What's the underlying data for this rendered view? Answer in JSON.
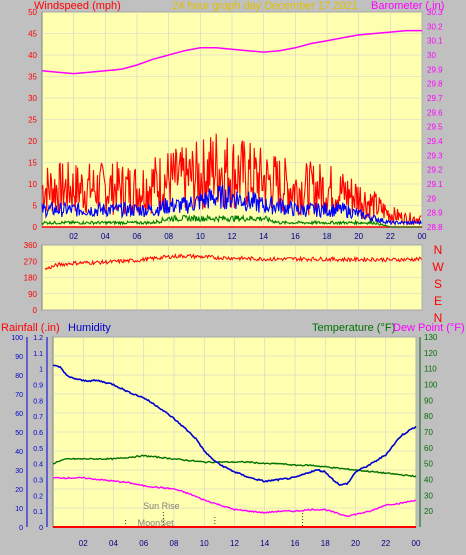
{
  "header": {
    "left_label": "Windspeed (mph)",
    "center_label": "24 hour graph day   December 17 2021",
    "right_label": "Barometer (.in)"
  },
  "colors": {
    "background": "#c0c0c0",
    "plot_bg": "#ffffb0",
    "grid": "#d0d0d0",
    "wind_gust": "#ff0000",
    "wind_avg": "#0000ff",
    "wind_low": "#008000",
    "barometer": "#ff00ff",
    "direction": "#ff0000",
    "humidity": "#0000cd",
    "temperature": "#007000",
    "dewpoint": "#ff00ff",
    "rain": "#ff0000",
    "left_axis_red": "#ff0000",
    "right_axis_magenta": "#ff00ff",
    "blue_axis": "#0000cd",
    "green_axis": "#007000"
  },
  "x_tick_labels": [
    "02",
    "04",
    "06",
    "08",
    "10",
    "12",
    "14",
    "16",
    "18",
    "20",
    "22",
    "00"
  ],
  "chart_data": [
    {
      "type": "line",
      "x_unit": "hour",
      "x_range": [
        0,
        24
      ],
      "y_left": {
        "label": "Windspeed (mph)",
        "range": [
          0,
          50
        ],
        "ticks": [
          "0",
          "5",
          "10",
          "15",
          "20",
          "25",
          "30",
          "35",
          "40",
          "45",
          "50"
        ]
      },
      "y_right": {
        "label": "Barometer (.in)",
        "range": [
          28.8,
          30.3
        ],
        "ticks": [
          "28.8",
          "28.9",
          "29",
          "29.1",
          "29.2",
          "29.3",
          "29.4",
          "29.5",
          "29.6",
          "29.7",
          "29.8",
          "29.9",
          "30",
          "30.1",
          "30.2",
          "30.3"
        ]
      },
      "series": [
        {
          "key": "barometer",
          "axis": "right",
          "x": [
            0,
            1,
            2,
            3,
            4,
            5,
            6,
            7,
            8,
            9,
            10,
            11,
            12,
            13,
            14,
            15,
            16,
            17,
            18,
            19,
            20,
            21,
            22,
            23,
            24
          ],
          "values": [
            29.89,
            29.88,
            29.87,
            29.88,
            29.89,
            29.9,
            29.93,
            29.97,
            30.0,
            30.03,
            30.05,
            30.05,
            30.04,
            30.03,
            30.02,
            30.03,
            30.05,
            30.08,
            30.1,
            30.12,
            30.14,
            30.15,
            30.16,
            30.17,
            30.17
          ]
        },
        {
          "key": "wind_gust",
          "axis": "left",
          "x": [
            0,
            1,
            2,
            3,
            4,
            5,
            6,
            7,
            8,
            9,
            10,
            11,
            12,
            13,
            14,
            15,
            16,
            17,
            18,
            19,
            20,
            21,
            22,
            23,
            24
          ],
          "values": [
            9,
            9,
            9,
            9,
            9,
            9,
            9,
            10,
            11,
            11,
            12,
            14,
            13,
            12,
            11,
            10,
            9,
            9,
            9,
            8,
            7,
            5,
            3,
            2,
            2
          ]
        },
        {
          "key": "wind_avg",
          "axis": "left",
          "x": [
            0,
            1,
            2,
            3,
            4,
            5,
            6,
            7,
            8,
            9,
            10,
            11,
            12,
            13,
            14,
            15,
            16,
            17,
            18,
            19,
            20,
            21,
            22,
            23,
            24
          ],
          "values": [
            4,
            4,
            4,
            4,
            4,
            4,
            4,
            4,
            5,
            5,
            6,
            7,
            7,
            6,
            5,
            5,
            4,
            4,
            4,
            4,
            3,
            2,
            1,
            1,
            1
          ]
        },
        {
          "key": "wind_low",
          "axis": "left",
          "x": [
            0,
            1,
            2,
            3,
            4,
            5,
            6,
            7,
            8,
            9,
            10,
            11,
            12,
            13,
            14,
            15,
            16,
            17,
            18,
            19,
            20,
            21,
            22,
            23,
            24
          ],
          "values": [
            1,
            1,
            1,
            1,
            1,
            1,
            1,
            1,
            2,
            2,
            2,
            2,
            2,
            2,
            2,
            1,
            1,
            1,
            1,
            1,
            1,
            1,
            0,
            0,
            0
          ]
        }
      ]
    },
    {
      "type": "line",
      "x_unit": "hour",
      "x_range": [
        0,
        24
      ],
      "y_left": {
        "range": [
          0,
          360
        ],
        "ticks": [
          "0",
          "90",
          "180",
          "270",
          "360"
        ]
      },
      "y_right": {
        "compass_labels": [
          "N",
          "W",
          "S",
          "E",
          "N"
        ]
      },
      "series": [
        {
          "key": "direction",
          "axis": "left",
          "x": [
            0,
            1,
            2,
            3,
            4,
            5,
            6,
            7,
            8,
            9,
            10,
            11,
            12,
            13,
            14,
            15,
            16,
            17,
            18,
            19,
            20,
            21,
            22,
            23,
            24
          ],
          "values": [
            220,
            250,
            260,
            262,
            265,
            270,
            275,
            285,
            295,
            300,
            295,
            290,
            288,
            285,
            283,
            282,
            283,
            283,
            282,
            280,
            280,
            281,
            278,
            280,
            282
          ]
        }
      ]
    },
    {
      "type": "line",
      "x_unit": "hour",
      "x_range": [
        0,
        24
      ],
      "header": {
        "rain_label": "Rainfall (.in)",
        "humidity_label": "Humidity",
        "temp_label": "Temperature (°F)",
        "dew_label": "Dew Point (°F)"
      },
      "y_humidity": {
        "range": [
          0,
          100
        ],
        "ticks": [
          "0",
          "10",
          "20",
          "30",
          "40",
          "50",
          "60",
          "70",
          "80",
          "90",
          "100"
        ]
      },
      "y_rain": {
        "range": [
          0,
          1.2
        ],
        "ticks": [
          "0",
          "0.1",
          "0.2",
          "0.3",
          "0.4",
          "0.5",
          "0.6",
          "0.7",
          "0.8",
          "0.9",
          "1",
          "1.1",
          "1.2"
        ]
      },
      "y_temp": {
        "range": [
          10,
          130
        ],
        "ticks": [
          "20",
          "30",
          "40",
          "50",
          "60",
          "70",
          "80",
          "90",
          "100",
          "110",
          "120",
          "130"
        ]
      },
      "annotations": {
        "sunrise_label": "Sun Rise",
        "moonset_label": "MoonSet",
        "sunrise_hour": 7.3,
        "moonset_hour": 4.8,
        "sunset_hour": 16.5,
        "dotted_marker_hour": 10.7
      },
      "series": [
        {
          "key": "humidity",
          "axis": "humidity",
          "x": [
            0,
            0.5,
            1,
            2,
            3,
            4,
            5,
            6,
            7,
            8,
            9,
            9.5,
            10,
            10.5,
            11,
            12,
            13,
            14,
            15,
            16,
            17,
            17.5,
            18,
            18.5,
            19,
            19.5,
            20,
            21,
            22,
            23,
            24
          ],
          "values": [
            85,
            84,
            79,
            77,
            77,
            75,
            71,
            68,
            63,
            57,
            50,
            46,
            40,
            36,
            33,
            29,
            26,
            24,
            25,
            26,
            29,
            30,
            29,
            25,
            22,
            23,
            29,
            33,
            38,
            48,
            53
          ]
        },
        {
          "key": "temperature",
          "axis": "temp",
          "x": [
            0,
            0.5,
            1,
            2,
            3,
            4,
            5,
            6,
            7,
            8,
            9,
            10,
            11,
            12,
            13,
            14,
            15,
            16,
            17,
            18,
            19,
            20,
            21,
            22,
            23,
            24
          ],
          "values": [
            50,
            52,
            53,
            53,
            53,
            53,
            54,
            55,
            54,
            53,
            52,
            51,
            51,
            51,
            51,
            50,
            50,
            49,
            49,
            48,
            47,
            46,
            45,
            44,
            43,
            42
          ]
        },
        {
          "key": "dewpoint",
          "axis": "temp",
          "x": [
            0,
            1,
            2,
            3,
            4,
            5,
            6,
            7,
            8,
            9,
            10,
            11,
            12,
            13,
            14,
            15,
            16,
            17,
            18,
            19,
            19.5,
            20,
            21,
            22,
            23,
            24
          ],
          "values": [
            41,
            41,
            41,
            40,
            39,
            38,
            36,
            35,
            34,
            31,
            27,
            24,
            21,
            20,
            19,
            20,
            20,
            21,
            21,
            18,
            17,
            18,
            20,
            24,
            25,
            27
          ]
        },
        {
          "key": "rain",
          "axis": "rain",
          "x": [
            0,
            24
          ],
          "values": [
            0,
            0
          ]
        }
      ]
    }
  ]
}
